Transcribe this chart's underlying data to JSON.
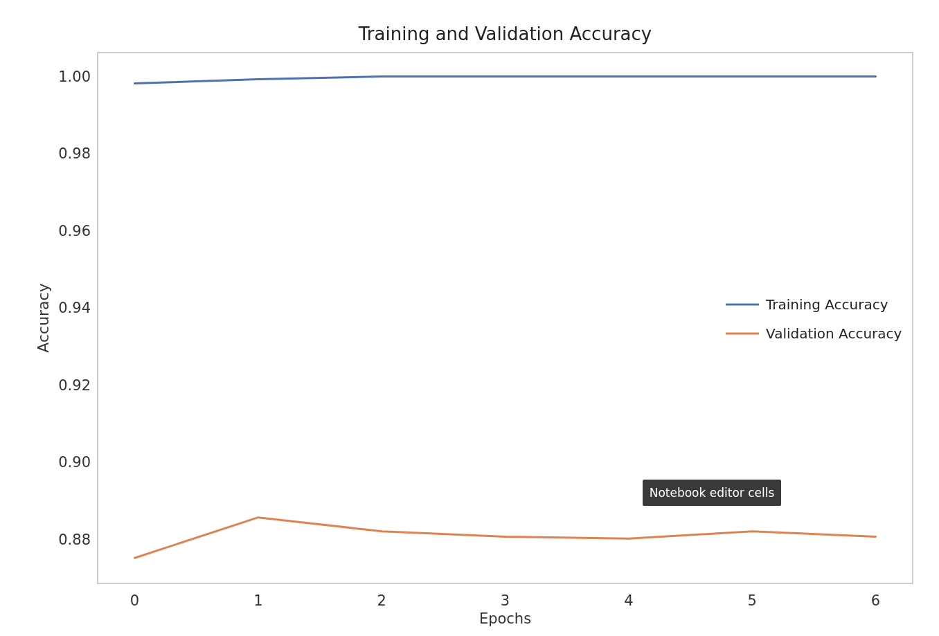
{
  "chart_data": {
    "type": "line",
    "title": "Training and Validation Accuracy",
    "xlabel": "Epochs",
    "ylabel": "Accuracy",
    "x": [
      0,
      1,
      2,
      3,
      4,
      5,
      6
    ],
    "series": [
      {
        "name": "Training Accuracy",
        "color": "#4c72b0",
        "values": [
          0.9982,
          0.9993,
          1.0,
          1.0,
          1.0,
          1.0,
          1.0
        ]
      },
      {
        "name": "Validation Accuracy",
        "color": "#dd8452",
        "values": [
          0.8752,
          0.8857,
          0.8821,
          0.8807,
          0.8802,
          0.8821,
          0.8807
        ]
      }
    ],
    "xlim": [
      -0.3,
      6.3
    ],
    "ylim": [
      0.8686,
      1.0062
    ],
    "xticks": [
      0,
      1,
      2,
      3,
      4,
      5,
      6
    ],
    "yticks": [
      {
        "value": 0.88,
        "label": "0.88"
      },
      {
        "value": 0.9,
        "label": "0.90"
      },
      {
        "value": 0.92,
        "label": "0.92"
      },
      {
        "value": 0.94,
        "label": "0.94"
      },
      {
        "value": 0.96,
        "label": "0.96"
      },
      {
        "value": 0.98,
        "label": "0.98"
      },
      {
        "value": 1.0,
        "label": "1.00"
      }
    ],
    "legend": "right",
    "grid": false,
    "marker": "none",
    "line_style": "solid",
    "annotations": [
      "Notebook editor cells"
    ]
  }
}
